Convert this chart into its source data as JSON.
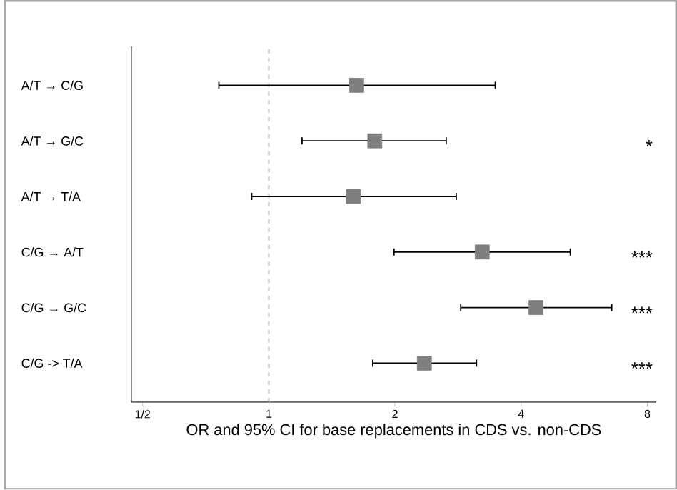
{
  "chart_data": {
    "type": "scatter",
    "orientation": "horizontal",
    "xlabel": "OR and 95% CI for base replacements in CDS vs. non-CDS",
    "categories": [
      "A/T → C/G",
      "A/T → G/C",
      "A/T → T/A",
      "C/G → A/T",
      "C/G → G/C",
      "C/G -> T/A"
    ],
    "values": [
      1.62,
      1.79,
      1.59,
      3.23,
      4.34,
      2.35
    ],
    "errors": [
      [
        0.76,
        3.47
      ],
      [
        1.2,
        2.65
      ],
      [
        0.91,
        2.8
      ],
      [
        1.99,
        5.24
      ],
      [
        2.87,
        6.58
      ],
      [
        1.77,
        3.13
      ]
    ],
    "y2_categories": [
      null,
      "*",
      null,
      "***",
      "***",
      "***"
    ],
    "color": "#7f7f7f",
    "marker": "square",
    "log": "x",
    "grid": false,
    "legend": false,
    "xlim": [
      0.47,
      8.4
    ],
    "xticks": [
      {
        "value": 0.5,
        "label": "1/2"
      },
      1,
      2,
      4,
      8
    ],
    "ref_lines": [
      {
        "axis": "x",
        "value": 1,
        "color": "#aaaaaa",
        "line_style": "dashed"
      }
    ]
  }
}
